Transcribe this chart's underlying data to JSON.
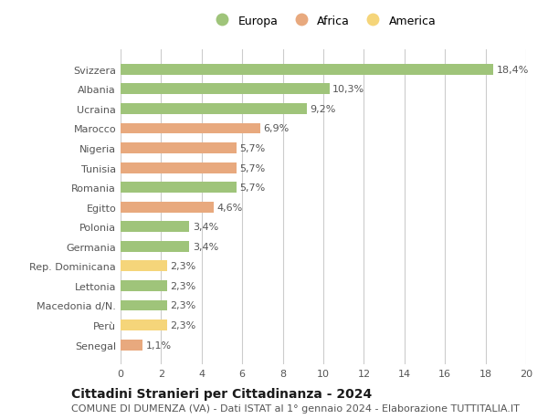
{
  "categories": [
    "Svizzera",
    "Albania",
    "Ucraina",
    "Marocco",
    "Nigeria",
    "Tunisia",
    "Romania",
    "Egitto",
    "Polonia",
    "Germania",
    "Rep. Dominicana",
    "Lettonia",
    "Macedonia d/N.",
    "Perù",
    "Senegal"
  ],
  "values": [
    18.4,
    10.3,
    9.2,
    6.9,
    5.7,
    5.7,
    5.7,
    4.6,
    3.4,
    3.4,
    2.3,
    2.3,
    2.3,
    2.3,
    1.1
  ],
  "labels": [
    "18,4%",
    "10,3%",
    "9,2%",
    "6,9%",
    "5,7%",
    "5,7%",
    "5,7%",
    "4,6%",
    "3,4%",
    "3,4%",
    "2,3%",
    "2,3%",
    "2,3%",
    "2,3%",
    "1,1%"
  ],
  "continents": [
    "Europa",
    "Europa",
    "Europa",
    "Africa",
    "Africa",
    "Africa",
    "Europa",
    "Africa",
    "Europa",
    "Europa",
    "America",
    "Europa",
    "Europa",
    "America",
    "Africa"
  ],
  "colors": {
    "Europa": "#9fc47a",
    "Africa": "#e8a97e",
    "America": "#f5d57a"
  },
  "legend_order": [
    "Europa",
    "Africa",
    "America"
  ],
  "xlim": [
    0,
    20
  ],
  "xticks": [
    0,
    2,
    4,
    6,
    8,
    10,
    12,
    14,
    16,
    18,
    20
  ],
  "title": "Cittadini Stranieri per Cittadinanza - 2024",
  "subtitle": "COMUNE DI DUMENZA (VA) - Dati ISTAT al 1° gennaio 2024 - Elaborazione TUTTITALIA.IT",
  "background_color": "#ffffff",
  "bar_height": 0.55,
  "grid_color": "#cccccc",
  "label_color": "#555555",
  "title_fontsize": 10,
  "subtitle_fontsize": 8,
  "tick_fontsize": 8,
  "bar_label_fontsize": 8
}
